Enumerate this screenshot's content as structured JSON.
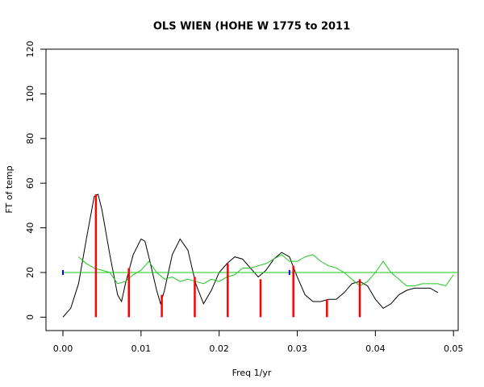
{
  "chart_data": {
    "type": "line",
    "title": "OLS WIEN (HOHE W 1775 to 2011",
    "x_label": "Freq 1/yr",
    "y_label": "FT of temp",
    "xlim": [
      -0.00217,
      0.0506
    ],
    "ylim": [
      -6,
      120
    ],
    "xticks": [
      {
        "value": 0,
        "label": "0.00"
      },
      {
        "value": 0.01,
        "label": "0.01"
      },
      {
        "value": 0.02,
        "label": "0.02"
      },
      {
        "value": 0.03,
        "label": "0.03"
      },
      {
        "value": 0.04,
        "label": "0.04"
      },
      {
        "value": 0.05,
        "label": "0.05"
      }
    ],
    "yticks": [
      0,
      20,
      40,
      60,
      80,
      100,
      120
    ],
    "series": [
      {
        "kind": "line",
        "color": "#000000",
        "x": [
          0,
          0.001,
          0.002,
          0.003,
          0.004,
          0.0045,
          0.005,
          0.006,
          0.007,
          0.0075,
          0.008,
          0.009,
          0.01,
          0.0105,
          0.011,
          0.012,
          0.0125,
          0.013,
          0.014,
          0.015,
          0.016,
          0.017,
          0.018,
          0.019,
          0.02,
          0.021,
          0.022,
          0.023,
          0.024,
          0.025,
          0.026,
          0.027,
          0.028,
          0.029,
          0.03,
          0.031,
          0.032,
          0.033,
          0.034,
          0.035,
          0.036,
          0.037,
          0.038,
          0.039,
          0.04,
          0.041,
          0.042,
          0.043,
          0.044,
          0.045,
          0.046,
          0.047,
          0.048
        ],
        "values": [
          0,
          4,
          15,
          35,
          54,
          55,
          48,
          28,
          10,
          7,
          15,
          28,
          35,
          34,
          27,
          12,
          6,
          12,
          28,
          35,
          30,
          15,
          6,
          12,
          20,
          24,
          27,
          26,
          22,
          18,
          21,
          26,
          29,
          27,
          18,
          10,
          7,
          7,
          8,
          8,
          11,
          15,
          16,
          14,
          8,
          4,
          6,
          10,
          12,
          13,
          13,
          13,
          11
        ]
      },
      {
        "kind": "line",
        "color": "#1ec81e",
        "x": [
          0.002,
          0.003,
          0.004,
          0.005,
          0.006,
          0.007,
          0.008,
          0.009,
          0.01,
          0.011,
          0.012,
          0.013,
          0.014,
          0.015,
          0.016,
          0.017,
          0.018,
          0.019,
          0.02,
          0.021,
          0.022,
          0.023,
          0.024,
          0.025,
          0.026,
          0.027,
          0.028,
          0.029,
          0.03,
          0.031,
          0.032,
          0.033,
          0.034,
          0.035,
          0.036,
          0.037,
          0.038,
          0.039,
          0.04,
          0.041,
          0.042,
          0.043,
          0.044,
          0.045,
          0.046,
          0.047,
          0.048,
          0.049,
          0.05
        ],
        "values": [
          27,
          24,
          22,
          21,
          20,
          15,
          16,
          19,
          21,
          25,
          20,
          17,
          18,
          16,
          17,
          16,
          15,
          17,
          16,
          18,
          19,
          22,
          22,
          23,
          24,
          26,
          28,
          25,
          25,
          27,
          28,
          25,
          23,
          22,
          20,
          17,
          14,
          16,
          20,
          25,
          20,
          17,
          14,
          14,
          15,
          15,
          15,
          14,
          19
        ]
      },
      {
        "kind": "line",
        "color": "#1ec81e",
        "x": [
          0,
          0.0505
        ],
        "values": [
          20,
          20
        ]
      },
      {
        "kind": "spikes",
        "color": "#ff0000",
        "x": [
          0.00422,
          0.00844,
          0.01266,
          0.01688,
          0.0211,
          0.0253,
          0.0295,
          0.0338,
          0.038
        ],
        "values": [
          55,
          22,
          10,
          18,
          24,
          17,
          23,
          8,
          17
        ]
      },
      {
        "kind": "points",
        "color": "#0000ff",
        "x": [
          0,
          0.029
        ],
        "values": [
          20,
          20
        ]
      }
    ]
  }
}
